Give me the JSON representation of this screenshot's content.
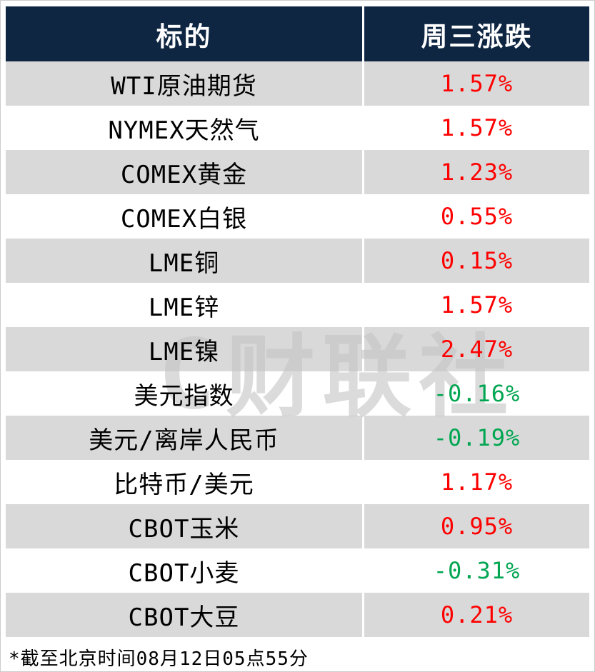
{
  "table": {
    "headers": [
      "标的",
      "周三涨跌"
    ],
    "rows": [
      {
        "name": "WTI原油期货",
        "change": "1.57%"
      },
      {
        "name": "NYMEX天然气",
        "change": "1.57%"
      },
      {
        "name": "COMEX黄金",
        "change": "1.23%"
      },
      {
        "name": "COMEX白银",
        "change": "0.55%"
      },
      {
        "name": "LME铜",
        "change": "0.15%"
      },
      {
        "name": "LME锌",
        "change": "1.57%"
      },
      {
        "name": "LME镍",
        "change": "2.47%"
      },
      {
        "name": "美元指数",
        "change": "-0.16%"
      },
      {
        "name": "美元/离岸人民币",
        "change": "-0.19%"
      },
      {
        "name": "比特币/美元",
        "change": "1.17%"
      },
      {
        "name": "CBOT玉米",
        "change": "0.95%"
      },
      {
        "name": "CBOT小麦",
        "change": "-0.31%"
      },
      {
        "name": "CBOT大豆",
        "change": "0.21%"
      }
    ],
    "footnote": "*截至北京时间08月12日05点55分"
  },
  "watermark": {
    "logo": "C",
    "text": "财联社"
  },
  "colors": {
    "header_bg": "#0e2642",
    "header_text": "#ffffff",
    "row_alt_bg": "#d9d9d9",
    "row_bg": "#ffffff",
    "up_color": "#fe0000",
    "down_color": "#00a651"
  },
  "chart_data": {
    "type": "table",
    "title": "",
    "columns": [
      "标的",
      "周三涨跌"
    ],
    "rows": [
      [
        "WTI原油期货",
        "1.57%"
      ],
      [
        "NYMEX天然气",
        "1.57%"
      ],
      [
        "COMEX黄金",
        "1.23%"
      ],
      [
        "COMEX白银",
        "0.55%"
      ],
      [
        "LME铜",
        "0.15%"
      ],
      [
        "LME锌",
        "1.57%"
      ],
      [
        "LME镍",
        "2.47%"
      ],
      [
        "美元指数",
        "-0.16%"
      ],
      [
        "美元/离岸人民币",
        "-0.19%"
      ],
      [
        "比特币/美元",
        "1.17%"
      ],
      [
        "CBOT玉米",
        "0.95%"
      ],
      [
        "CBOT小麦",
        "-0.31%"
      ],
      [
        "CBOT大豆",
        "0.21%"
      ]
    ],
    "note": "*截至北京时间08月12日05点55分",
    "value_color_convention": "red=up, green=down"
  }
}
